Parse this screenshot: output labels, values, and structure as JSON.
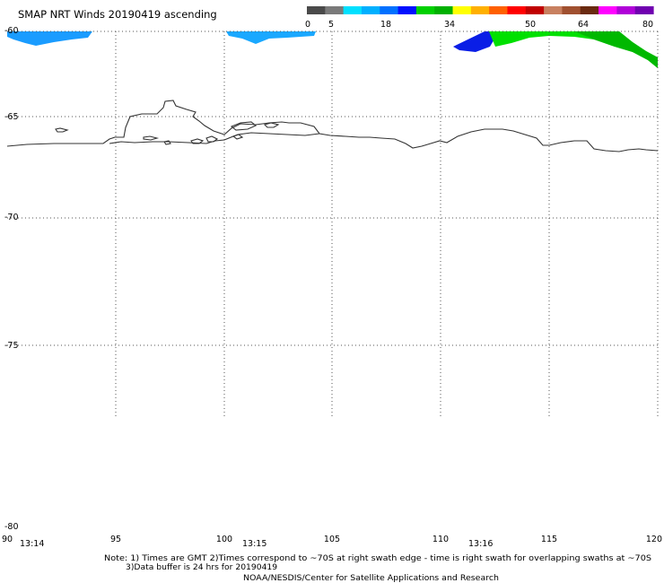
{
  "title": "SMAP NRT Winds 20190419 ascending",
  "colorbar": {
    "tick_labels": [
      "0",
      "5",
      "18",
      "34",
      "50",
      "64",
      "80"
    ],
    "segment_colors": [
      "#4a4a4a",
      "#7a7a7a",
      "#00e0ff",
      "#00b0ff",
      "#0070ff",
      "#0010ff",
      "#00d000",
      "#00b000",
      "#ffff00",
      "#ffb000",
      "#ff6000",
      "#ff0000",
      "#c00000",
      "#c88060",
      "#a05030",
      "#6a2a10",
      "#ff00ff",
      "#b000d8",
      "#7000b0"
    ]
  },
  "map": {
    "latitude_labels": [
      "-60",
      "-65",
      "-70",
      "-75",
      "-80"
    ],
    "longitude_labels": [
      "90",
      "95",
      "100",
      "105",
      "110",
      "115",
      "120"
    ],
    "time_labels": [
      "13:14",
      "13:15",
      "13:16"
    ],
    "coastline_color": "#333333",
    "grid_color": "#555555"
  },
  "notes": {
    "line1": "Note: 1) Times are GMT 2)Times correspond to ~70S at right swath edge - time is right swath for overlapping swaths at ~70S",
    "line2": "3)Data buffer is 24 hrs for 20190419",
    "line3": "NOAA/NESDIS/Center for Satellite Applications and Research"
  }
}
